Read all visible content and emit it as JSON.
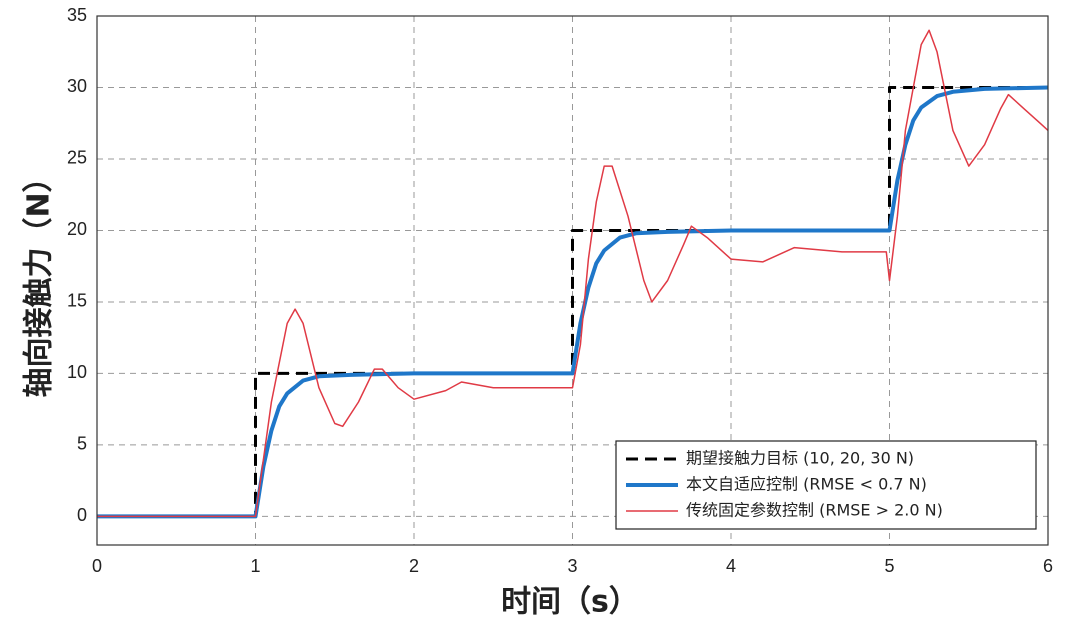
{
  "chart_data": {
    "type": "line",
    "xlabel": "时间（s）",
    "ylabel": "轴向接触力（N）",
    "xlim": [
      0,
      6
    ],
    "xticks": [
      0,
      1,
      2,
      3,
      4,
      5,
      6
    ],
    "ylim": [
      -2,
      35
    ],
    "yticks": [
      0,
      5,
      10,
      15,
      20,
      25,
      30,
      35
    ],
    "grid": true,
    "legend": "lower right",
    "series": [
      {
        "name": "期望接触力目标 (10, 20, 30 N)",
        "color": "#000000",
        "style": "dashed",
        "x": [
          0,
          1,
          1,
          3,
          3,
          5,
          5,
          6
        ],
        "values": [
          0,
          0,
          10,
          10,
          20,
          20,
          30,
          30
        ]
      },
      {
        "name": "本文自适应控制 (RMSE < 0.7 N)",
        "color": "#1f77c9",
        "style": "solid",
        "x": [
          0,
          1,
          1.05,
          1.1,
          1.15,
          1.2,
          1.3,
          1.4,
          1.6,
          2,
          3,
          3.05,
          3.1,
          3.15,
          3.2,
          3.3,
          3.4,
          3.6,
          4,
          5,
          5.05,
          5.1,
          5.15,
          5.2,
          5.3,
          5.4,
          5.6,
          6
        ],
        "values": [
          0,
          0,
          3.5,
          6,
          7.7,
          8.6,
          9.5,
          9.8,
          9.9,
          10,
          10,
          13.5,
          16,
          17.7,
          18.6,
          19.5,
          19.8,
          19.9,
          20,
          20,
          23.5,
          26,
          27.7,
          28.6,
          29.4,
          29.7,
          29.9,
          30
        ]
      },
      {
        "name": "传统固定参数控制 (RMSE > 2.0 N)",
        "color": "#e03a45",
        "style": "thin",
        "x": [
          0,
          1,
          1.1,
          1.2,
          1.25,
          1.3,
          1.4,
          1.5,
          1.55,
          1.65,
          1.75,
          1.8,
          1.9,
          2.0,
          2.2,
          2.3,
          2.5,
          3.0,
          3.05,
          3.1,
          3.15,
          3.2,
          3.25,
          3.35,
          3.45,
          3.5,
          3.6,
          3.7,
          3.75,
          3.85,
          4.0,
          4.2,
          4.4,
          4.7,
          4.98,
          5.0,
          5.05,
          5.1,
          5.2,
          5.25,
          5.3,
          5.4,
          5.5,
          5.6,
          5.7,
          5.75,
          5.85,
          5.95,
          6.0
        ],
        "values": [
          0,
          0,
          8,
          13.5,
          14.5,
          13.5,
          9,
          6.5,
          6.3,
          8,
          10.3,
          10.3,
          9,
          8.2,
          8.8,
          9.4,
          9,
          9,
          12,
          18,
          22,
          24.5,
          24.5,
          21,
          16.5,
          15,
          16.5,
          19,
          20.3,
          19.5,
          18,
          17.8,
          18.8,
          18.5,
          18.5,
          16.5,
          21,
          27,
          33,
          34,
          32.5,
          27,
          24.5,
          26,
          28.5,
          29.5,
          28.5,
          27.5,
          27
        ]
      }
    ]
  }
}
